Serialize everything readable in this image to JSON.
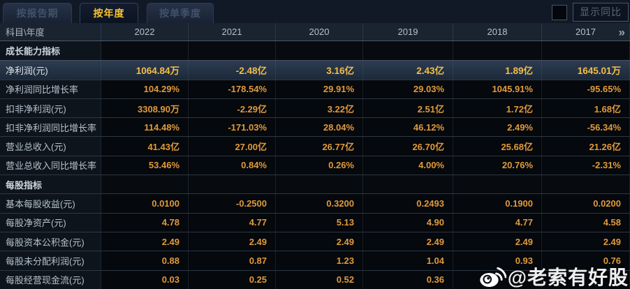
{
  "tabs": {
    "items": [
      {
        "label": "按报告期",
        "active": false
      },
      {
        "label": "按年度",
        "active": true
      },
      {
        "label": "按单季度",
        "active": false
      }
    ]
  },
  "controls": {
    "show_yoy_label": "显示同比",
    "checkbox_checked": false
  },
  "table": {
    "corner_header": "科目\\年度",
    "year_headers": [
      "2022",
      "2021",
      "2020",
      "2019",
      "2018",
      "2017"
    ],
    "more_years_icon": "»",
    "rows": [
      {
        "type": "section",
        "label": "成长能力指标",
        "values": [
          "",
          "",
          "",
          "",
          "",
          ""
        ]
      },
      {
        "type": "highlight",
        "label": "净利润(元)",
        "values": [
          "1064.84万",
          "-2.48亿",
          "3.16亿",
          "2.43亿",
          "1.89亿",
          "1645.01万"
        ]
      },
      {
        "type": "normal",
        "label": "净利润同比增长率",
        "values": [
          "104.29%",
          "-178.54%",
          "29.91%",
          "29.03%",
          "1045.91%",
          "-95.65%"
        ]
      },
      {
        "type": "normal",
        "label": "扣非净利润(元)",
        "values": [
          "3308.90万",
          "-2.29亿",
          "3.22亿",
          "2.51亿",
          "1.72亿",
          "1.68亿"
        ]
      },
      {
        "type": "normal",
        "label": "扣非净利润同比增长率",
        "values": [
          "114.48%",
          "-171.03%",
          "28.04%",
          "46.12%",
          "2.49%",
          "-56.34%"
        ]
      },
      {
        "type": "normal",
        "label": "营业总收入(元)",
        "values": [
          "41.43亿",
          "27.00亿",
          "26.77亿",
          "26.70亿",
          "25.68亿",
          "21.26亿"
        ]
      },
      {
        "type": "normal",
        "label": "营业总收入同比增长率",
        "values": [
          "53.46%",
          "0.84%",
          "0.26%",
          "4.00%",
          "20.76%",
          "-2.31%"
        ]
      },
      {
        "type": "section",
        "label": "每股指标",
        "values": [
          "",
          "",
          "",
          "",
          "",
          ""
        ]
      },
      {
        "type": "normal",
        "label": "基本每股收益(元)",
        "values": [
          "0.0100",
          "-0.2500",
          "0.3200",
          "0.2493",
          "0.1900",
          "0.0200"
        ]
      },
      {
        "type": "normal",
        "label": "每股净资产(元)",
        "values": [
          "4.78",
          "4.77",
          "5.13",
          "4.90",
          "4.77",
          "4.58"
        ]
      },
      {
        "type": "normal",
        "label": "每股资本公积金(元)",
        "values": [
          "2.49",
          "2.49",
          "2.49",
          "2.49",
          "2.49",
          "2.49"
        ]
      },
      {
        "type": "normal",
        "label": "每股未分配利润(元)",
        "values": [
          "0.88",
          "0.87",
          "1.23",
          "1.04",
          "0.93",
          "0.76"
        ]
      },
      {
        "type": "normal",
        "label": "每股经营现金流(元)",
        "values": [
          "0.03",
          "0.25",
          "0.52",
          "0.36",
          "",
          ""
        ]
      }
    ]
  },
  "watermark": {
    "text": "@老索有好股",
    "icon": "weibo-icon"
  },
  "colors": {
    "value": "#e19a3b",
    "highlight_value": "#f3bf4a",
    "active_tab": "#f7c233",
    "header_bg": "#1a2430",
    "highlight_row_bg": "#243244"
  }
}
